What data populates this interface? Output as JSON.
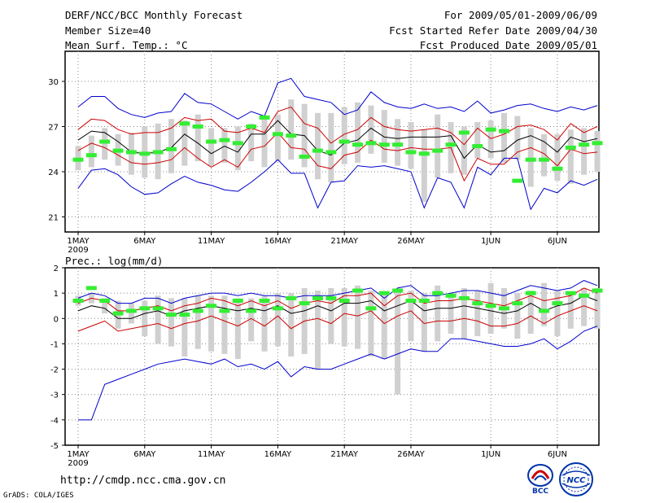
{
  "header": {
    "title": "DERF/NCC/BCC Monthly Forecast",
    "member_size": "Member Size=40",
    "variable": "Mean Surf. Temp.: °C",
    "period": "For 2009/05/01-2009/06/09",
    "start_date": "Fcst Started Refer Date 2009/04/30",
    "produced_date": "Fcst Produced Date 2009/05/01"
  },
  "footer": {
    "url": "http://cmdp.ncc.cma.gov.cn",
    "grads": "GrADS: COLA/IGES",
    "logo_bcc": "BCC",
    "logo_ncc": "NCC"
  },
  "colors": {
    "max_min": "#0000cc",
    "spread": "#cc0000",
    "mean": "#000000",
    "observed": "#33ee33",
    "box": "#d0d0d0"
  },
  "chart_data": [
    {
      "type": "ensemble_boxplot",
      "title": "Mean Surf. Temp.: °C",
      "ylim": [
        20,
        32
      ],
      "yticks": [
        21,
        24,
        27,
        30
      ],
      "xticks": [
        {
          "i": 1,
          "label": "1MAY"
        },
        {
          "i": 6,
          "label": "6MAY"
        },
        {
          "i": 11,
          "label": "11MAY"
        },
        {
          "i": 16,
          "label": "16MAY"
        },
        {
          "i": 21,
          "label": "21MAY"
        },
        {
          "i": 26,
          "label": "26MAY"
        },
        {
          "i": 32,
          "label": "1JUN"
        },
        {
          "i": 37,
          "label": "6JUN"
        }
      ],
      "year_label": "2009",
      "days": 40,
      "max": [
        28.3,
        29.0,
        29.0,
        28.2,
        27.8,
        27.6,
        27.9,
        28.0,
        29.2,
        28.6,
        28.5,
        28.0,
        27.5,
        28.0,
        27.7,
        29.9,
        30.2,
        29.0,
        28.8,
        28.6,
        27.8,
        28.1,
        29.3,
        28.6,
        28.3,
        28.2,
        28.5,
        28.2,
        28.3,
        28.0,
        28.7,
        27.9,
        28.1,
        28.4,
        28.5,
        28.2,
        28.0,
        28.3,
        28.1,
        28.4
      ],
      "hi": [
        26.8,
        27.5,
        27.4,
        26.8,
        26.5,
        26.6,
        26.6,
        26.9,
        27.6,
        27.4,
        27.5,
        26.7,
        26.6,
        26.9,
        26.6,
        28.0,
        28.3,
        27.2,
        26.9,
        25.9,
        26.5,
        26.8,
        27.6,
        27.0,
        26.8,
        26.7,
        26.8,
        26.9,
        26.6,
        25.8,
        26.9,
        26.2,
        26.5,
        27.0,
        27.1,
        26.8,
        26.1,
        27.2,
        26.6,
        27.0
      ],
      "mean": [
        26.1,
        26.7,
        26.6,
        26.0,
        25.3,
        25.2,
        25.3,
        25.6,
        26.5,
        25.9,
        25.2,
        25.7,
        25.3,
        26.5,
        26.5,
        27.4,
        26.5,
        26.4,
        25.4,
        25.1,
        25.9,
        26.1,
        26.9,
        26.3,
        26.2,
        26.3,
        26.3,
        26.3,
        26.4,
        24.9,
        25.8,
        25.3,
        25.4,
        26.1,
        26.4,
        26.0,
        25.3,
        26.3,
        26.0,
        26.2
      ],
      "lo": [
        25.4,
        25.9,
        25.6,
        25.1,
        24.6,
        24.5,
        24.6,
        24.8,
        25.6,
        24.9,
        24.3,
        24.8,
        24.3,
        25.5,
        25.7,
        26.6,
        25.6,
        25.5,
        24.4,
        24.2,
        25.1,
        25.3,
        26.1,
        25.5,
        25.4,
        25.6,
        25.5,
        25.5,
        25.6,
        23.4,
        24.9,
        24.5,
        24.5,
        25.3,
        25.6,
        25.2,
        24.4,
        25.5,
        25.2,
        25.3
      ],
      "min": [
        22.9,
        24.1,
        24.2,
        23.8,
        23.0,
        22.5,
        22.6,
        23.2,
        23.7,
        23.3,
        23.1,
        22.8,
        22.7,
        23.3,
        24.0,
        24.8,
        23.9,
        23.9,
        21.6,
        23.3,
        23.4,
        24.4,
        24.3,
        24.4,
        24.2,
        24.0,
        21.6,
        23.6,
        23.3,
        21.6,
        24.3,
        23.8,
        24.9,
        24.9,
        21.5,
        22.9,
        22.6,
        23.4,
        23.1,
        23.5
      ],
      "box_hi": [
        25.7,
        26.4,
        26.9,
        26.5,
        26.6,
        27.0,
        27.2,
        27.5,
        27.4,
        27.8,
        26.9,
        26.9,
        27.0,
        27.2,
        27.6,
        27.8,
        28.8,
        28.5,
        27.9,
        27.9,
        28.3,
        28.6,
        28.4,
        28.1,
        27.5,
        27.3,
        26.8,
        27.8,
        27.3,
        27.0,
        27.3,
        27.4,
        27.9,
        27.7,
        26.9,
        26.5,
        26.5,
        26.8,
        26.9,
        26.7
      ],
      "box_lo": [
        24.1,
        24.3,
        24.8,
        24.4,
        23.8,
        23.6,
        23.5,
        23.9,
        24.4,
        24.7,
        24.4,
        24.6,
        24.1,
        24.7,
        24.3,
        24.7,
        24.8,
        24.3,
        23.5,
        23.3,
        24.5,
        24.6,
        25.2,
        24.6,
        24.4,
        24.2,
        22.0,
        23.6,
        23.9,
        23.8,
        24.9,
        24.9,
        24.6,
        24.8,
        23.0,
        23.7,
        23.4,
        23.2,
        23.8,
        24.0
      ],
      "observed": [
        24.8,
        25.1,
        26.0,
        25.4,
        25.3,
        25.2,
        25.3,
        25.5,
        27.2,
        27.0,
        26.0,
        26.1,
        25.9,
        27.0,
        27.6,
        26.5,
        26.4,
        25.0,
        25.4,
        25.3,
        26.0,
        25.8,
        25.9,
        25.8,
        25.8,
        25.3,
        25.2,
        25.4,
        25.8,
        26.6,
        25.7,
        26.8,
        26.7,
        23.4,
        24.8,
        24.8,
        24.2,
        25.6,
        25.8,
        25.9
      ]
    },
    {
      "type": "ensemble_boxplot",
      "title": "Prec.: log(mm/d)",
      "ylim": [
        -5,
        2
      ],
      "yticks": [
        -5,
        -4,
        -3,
        -2,
        -1,
        0,
        1,
        2
      ],
      "xticks": [
        {
          "i": 1,
          "label": "1MAY"
        },
        {
          "i": 6,
          "label": "6MAY"
        },
        {
          "i": 11,
          "label": "11MAY"
        },
        {
          "i": 16,
          "label": "16MAY"
        },
        {
          "i": 21,
          "label": "21MAY"
        },
        {
          "i": 26,
          "label": "26MAY"
        },
        {
          "i": 32,
          "label": "1JUN"
        },
        {
          "i": 37,
          "label": "6JUN"
        }
      ],
      "year_label": "2009",
      "days": 40,
      "max": [
        0.8,
        1.0,
        0.9,
        0.6,
        0.6,
        0.8,
        0.8,
        0.6,
        0.8,
        0.9,
        1.0,
        1.0,
        0.9,
        1.0,
        0.9,
        0.9,
        0.8,
        0.9,
        0.9,
        0.9,
        1.0,
        1.1,
        1.2,
        0.8,
        1.2,
        1.3,
        0.9,
        0.9,
        1.0,
        1.1,
        1.1,
        1.0,
        0.9,
        1.1,
        1.3,
        1.2,
        1.1,
        1.2,
        1.5,
        1.3
      ],
      "hi": [
        0.6,
        0.8,
        0.7,
        0.3,
        0.3,
        0.4,
        0.5,
        0.3,
        0.5,
        0.6,
        0.8,
        0.7,
        0.5,
        0.7,
        0.5,
        0.7,
        0.4,
        0.6,
        0.7,
        0.6,
        0.9,
        0.9,
        1.0,
        0.5,
        0.9,
        1.0,
        0.6,
        0.7,
        0.7,
        0.8,
        0.7,
        0.6,
        0.5,
        0.7,
        0.9,
        0.7,
        0.8,
        0.9,
        1.2,
        1.0
      ],
      "mean": [
        0.3,
        0.5,
        0.4,
        0.0,
        0.0,
        0.2,
        0.3,
        0.1,
        0.3,
        0.4,
        0.5,
        0.4,
        0.3,
        0.4,
        0.3,
        0.5,
        0.2,
        0.3,
        0.5,
        0.3,
        0.6,
        0.6,
        0.7,
        0.3,
        0.5,
        0.7,
        0.3,
        0.4,
        0.4,
        0.5,
        0.4,
        0.3,
        0.2,
        0.3,
        0.6,
        0.3,
        0.5,
        0.6,
        0.9,
        0.7
      ],
      "lo": [
        -0.5,
        -0.3,
        -0.1,
        -0.5,
        -0.4,
        -0.3,
        -0.2,
        -0.4,
        -0.2,
        -0.1,
        0.1,
        -0.1,
        -0.3,
        0.0,
        -0.3,
        0.1,
        -0.4,
        -0.1,
        0.0,
        -0.2,
        0.2,
        0.1,
        0.3,
        -0.2,
        0.1,
        0.3,
        -0.2,
        -0.1,
        -0.1,
        0.0,
        -0.1,
        -0.3,
        -0.3,
        -0.2,
        0.1,
        -0.2,
        0.1,
        0.3,
        0.5,
        0.3
      ],
      "min": [
        -4.0,
        -4.0,
        -2.6,
        -2.4,
        -2.2,
        -2.0,
        -1.8,
        -1.7,
        -1.6,
        -1.7,
        -1.8,
        -1.6,
        -1.9,
        -1.8,
        -2.0,
        -1.7,
        -2.3,
        -1.9,
        -2.0,
        -2.0,
        -1.8,
        -1.6,
        -1.4,
        -1.6,
        -1.4,
        -1.2,
        -1.3,
        -1.3,
        -0.8,
        -0.8,
        -0.9,
        -1.0,
        -1.1,
        -1.1,
        -1.0,
        -0.8,
        -1.2,
        -0.9,
        -0.5,
        -0.3
      ],
      "box_hi": [
        0.9,
        1.0,
        0.8,
        0.7,
        0.6,
        0.7,
        0.9,
        0.8,
        0.8,
        0.9,
        0.9,
        0.9,
        0.8,
        0.8,
        0.9,
        1.0,
        1.0,
        1.2,
        1.1,
        1.2,
        1.2,
        1.3,
        1.1,
        1.0,
        1.1,
        1.1,
        1.0,
        1.3,
        1.0,
        1.2,
        1.1,
        1.4,
        1.2,
        1.0,
        1.1,
        1.4,
        1.1,
        1.0,
        1.2,
        1.2
      ],
      "box_lo": [
        0.5,
        0.6,
        0.2,
        -0.4,
        -0.2,
        -0.7,
        -1.0,
        -1.1,
        -1.5,
        -1.2,
        -1.3,
        -1.4,
        -1.6,
        -0.9,
        -1.3,
        -1.1,
        -1.5,
        -1.4,
        -2.0,
        -1.0,
        -1.1,
        -1.2,
        -1.5,
        -1.6,
        -3.0,
        -0.9,
        -1.3,
        -0.9,
        -0.6,
        -0.8,
        -0.7,
        -0.6,
        -0.4,
        -0.8,
        -0.6,
        -0.3,
        -0.7,
        -0.4,
        -0.3,
        -0.4
      ],
      "observed": [
        0.7,
        1.2,
        0.7,
        0.2,
        0.3,
        0.4,
        0.4,
        0.15,
        0.15,
        0.3,
        0.5,
        0.3,
        0.7,
        0.3,
        0.7,
        0.4,
        0.8,
        0.6,
        0.8,
        0.8,
        0.7,
        1.1,
        0.4,
        1.0,
        1.1,
        0.7,
        0.7,
        1.0,
        0.9,
        0.8,
        0.6,
        0.5,
        0.4,
        0.6,
        1.0,
        0.3,
        0.6,
        1.0,
        0.9,
        1.1
      ]
    }
  ]
}
